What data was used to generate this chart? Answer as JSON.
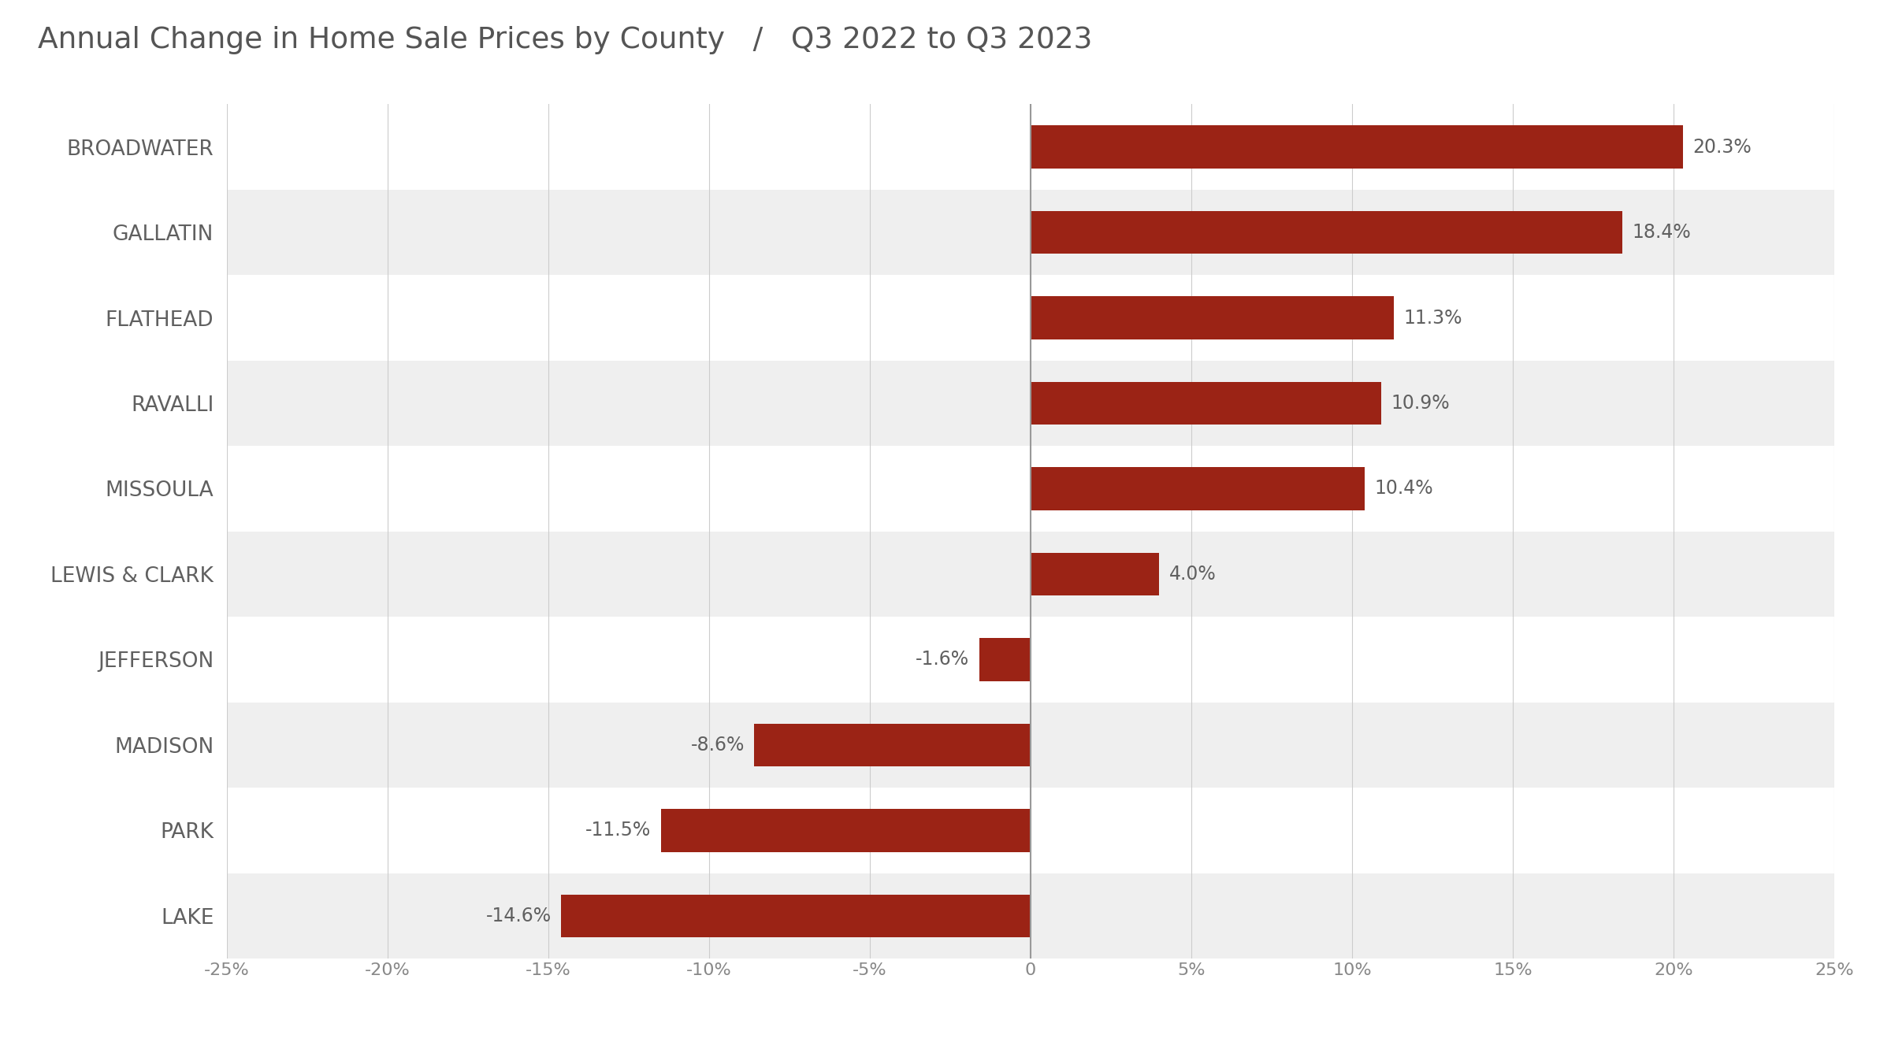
{
  "title": "Annual Change in Home Sale Prices by County",
  "subtitle": "Q3 2022 to Q3 2023",
  "counties": [
    "LAKE",
    "PARK",
    "MADISON",
    "JEFFERSON",
    "LEWIS & CLARK",
    "MISSOULA",
    "RAVALLI",
    "FLATHEAD",
    "GALLATIN",
    "BROADWATER"
  ],
  "values": [
    -14.6,
    -11.5,
    -8.6,
    -1.6,
    4.0,
    10.4,
    10.9,
    11.3,
    18.4,
    20.3
  ],
  "bar_color": "#9B2315",
  "bg_color_light": "#EFEFEF",
  "bg_color_white": "#FFFFFF",
  "label_color": "#606060",
  "title_color": "#555555",
  "tick_color": "#888888",
  "grid_color": "#CCCCCC",
  "xlim": [
    -25,
    25
  ],
  "xticks": [
    -25,
    -20,
    -15,
    -10,
    -5,
    0,
    5,
    10,
    15,
    20,
    25
  ],
  "label_fontsize": 19,
  "tick_fontsize": 16,
  "title_fontsize": 27,
  "value_fontsize": 17,
  "bar_height": 0.5
}
